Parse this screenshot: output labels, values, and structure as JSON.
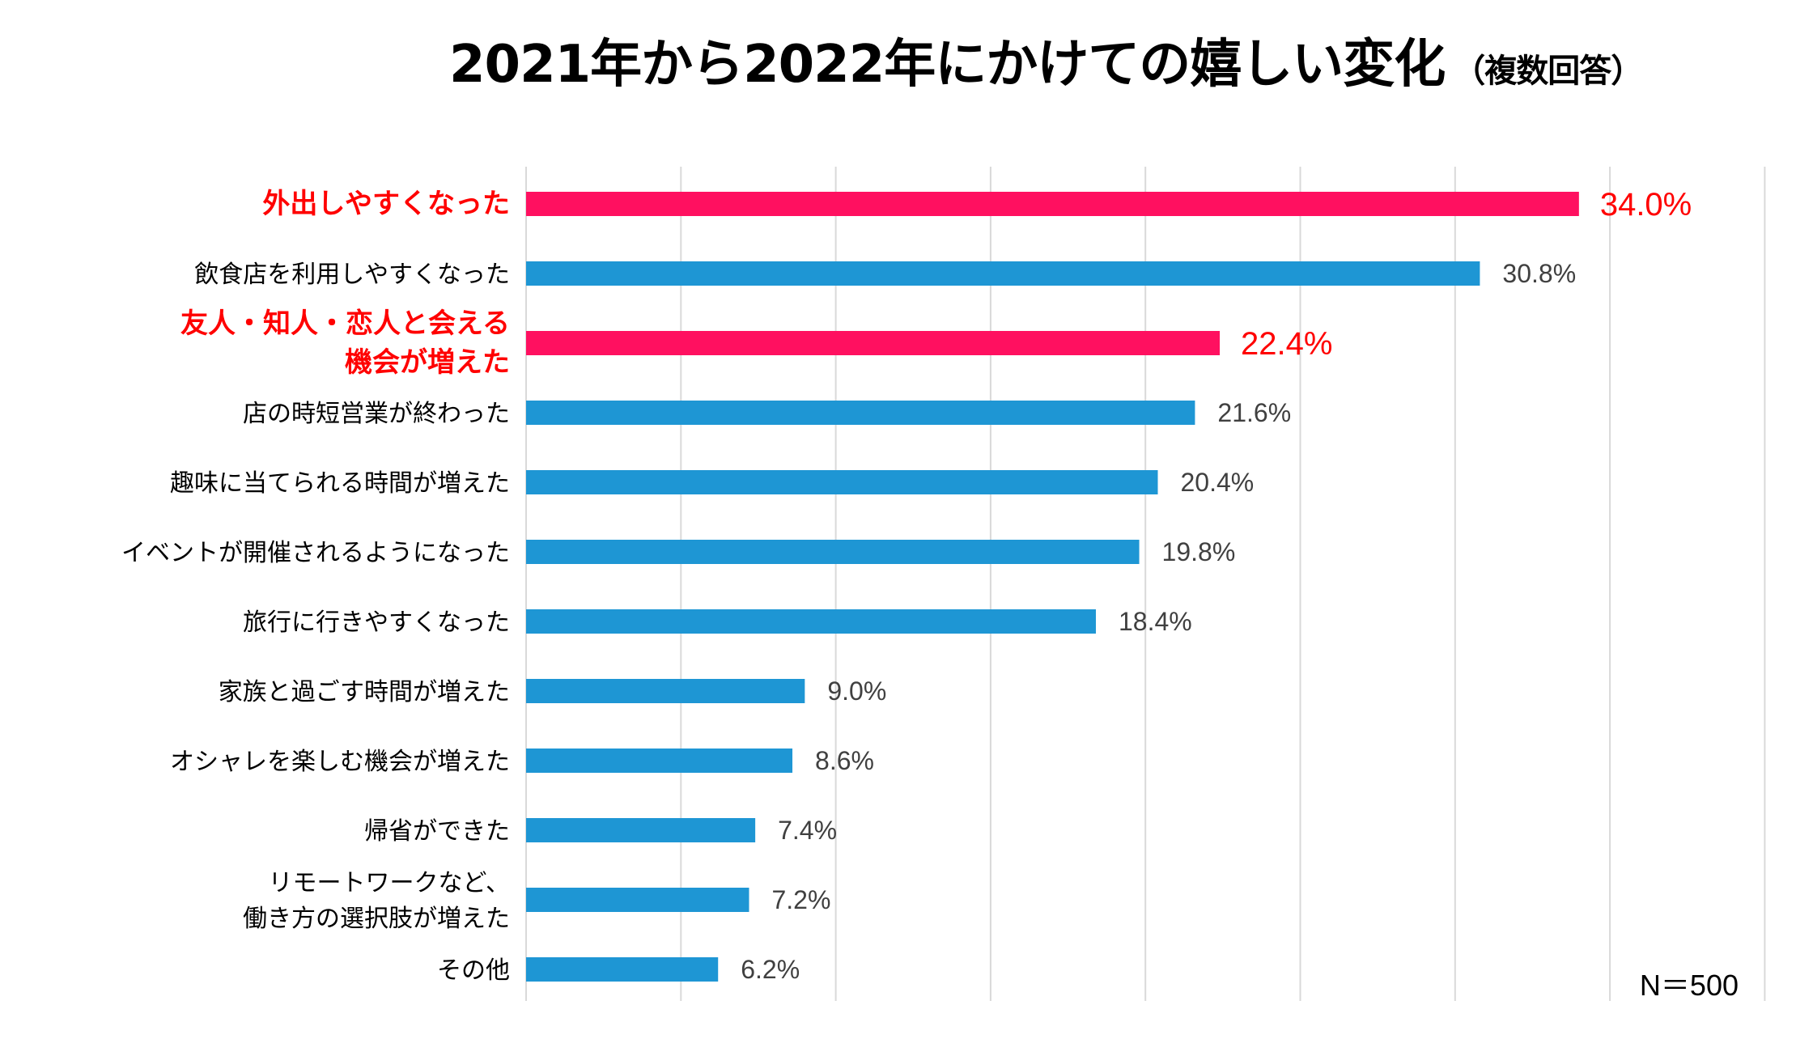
{
  "chart_data": {
    "type": "bar",
    "orientation": "horizontal",
    "title": "2021年から2022年にかけての嬉しい変化",
    "subtitle": "（複数回答）",
    "categories": [
      "外出しやすくなった",
      "飲食店を利用しやすくなった",
      "友人・知人・恋人と会える\n機会が増えた",
      "店の時短営業が終わった",
      "趣味に当てられる時間が増えた",
      "イベントが開催されるようになった",
      "旅行に行きやすくなった",
      "家族と過ごす時間が増えた",
      "オシャレを楽しむ機会が増えた",
      "帰省ができた",
      "リモートワークなど、\n働き方の選択肢が増えた",
      "その他"
    ],
    "values": [
      34.0,
      30.8,
      22.4,
      21.6,
      20.4,
      19.8,
      18.4,
      9.0,
      8.6,
      7.4,
      7.2,
      6.2
    ],
    "data_labels": [
      "34.0%",
      "30.8%",
      "22.4%",
      "21.6%",
      "20.4%",
      "19.8%",
      "18.4%",
      "9.0%",
      "8.6%",
      "7.4%",
      "7.2%",
      "6.2%"
    ],
    "highlighted": [
      true,
      false,
      true,
      false,
      false,
      false,
      false,
      false,
      false,
      false,
      false,
      false
    ],
    "xlim": [
      0,
      40
    ],
    "grid_step": 5,
    "grid": true,
    "note": "N＝500",
    "colors": {
      "bar": "#1E96D4",
      "highlight_bar": "#FF1060",
      "highlight_text": "#FF0000",
      "text": "#000000",
      "value_text": "#404040",
      "grid": "#D9D9D9"
    }
  }
}
